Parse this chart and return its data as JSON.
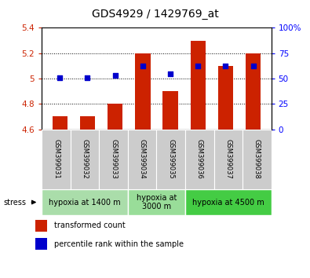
{
  "title": "GDS4929 / 1429769_at",
  "samples": [
    "GSM399031",
    "GSM399032",
    "GSM399033",
    "GSM399034",
    "GSM399035",
    "GSM399036",
    "GSM399037",
    "GSM399038"
  ],
  "bar_values": [
    4.7,
    4.7,
    4.8,
    5.2,
    4.9,
    5.3,
    5.1,
    5.2
  ],
  "bar_base": 4.6,
  "percentile_values": [
    51,
    51,
    53,
    62,
    55,
    62,
    62,
    62
  ],
  "ylim_left": [
    4.6,
    5.4
  ],
  "ylim_right": [
    0,
    100
  ],
  "yticks_left": [
    4.6,
    4.8,
    5.0,
    5.2,
    5.4
  ],
  "ytick_labels_left": [
    "4.6",
    "4.8",
    "5",
    "5.2",
    "5.4"
  ],
  "yticks_right": [
    0,
    25,
    50,
    75,
    100
  ],
  "ytick_labels_right": [
    "0",
    "25",
    "50",
    "75",
    "100%"
  ],
  "bar_color": "#cc2200",
  "dot_color": "#0000cc",
  "bg_color": "#ffffff",
  "plot_bg": "#ffffff",
  "group_spans": [
    {
      "start": 0,
      "end": 2,
      "label": "hypoxia at 1400 m",
      "color": "#aaddaa"
    },
    {
      "start": 3,
      "end": 4,
      "label": "hypoxia at\n3000 m",
      "color": "#99dd99"
    },
    {
      "start": 5,
      "end": 7,
      "label": "hypoxia at 4500 m",
      "color": "#44cc44"
    }
  ],
  "sample_cell_color": "#cccccc",
  "sample_cell_edge": "#ffffff",
  "stress_label": "stress",
  "legend_bar_label": "transformed count",
  "legend_dot_label": "percentile rank within the sample",
  "bar_width": 0.55,
  "title_fontsize": 10,
  "tick_fontsize": 7.5,
  "label_fontsize": 7,
  "sample_fontsize": 6,
  "group_fontsize": 7
}
